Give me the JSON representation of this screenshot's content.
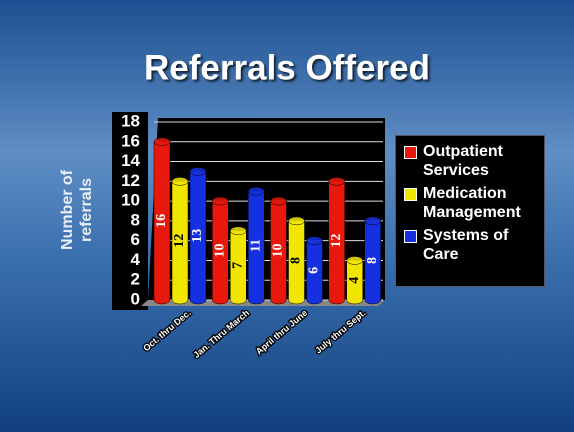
{
  "chart_data": {
    "type": "bar",
    "title": "Referrals Offered",
    "y_label": "Number of referrals",
    "categories": [
      "Oct. thru Dec.",
      "Jan. Thru March",
      "April thru June",
      "July thru Sept."
    ],
    "series": [
      {
        "name": "Outpatient Services",
        "color": "#e8180c",
        "values": [
          16,
          10,
          10,
          12
        ]
      },
      {
        "name": "Medication Management",
        "color": "#f2e600",
        "values": [
          12,
          7,
          8,
          4
        ]
      },
      {
        "name": "Systems of Care",
        "color": "#1530e0",
        "values": [
          13,
          11,
          6,
          8
        ]
      }
    ],
    "ylim": [
      0,
      18
    ],
    "yticks": [
      0,
      2,
      4,
      6,
      8,
      10,
      12,
      14,
      16,
      18
    ],
    "grid": true,
    "legend": "right"
  }
}
